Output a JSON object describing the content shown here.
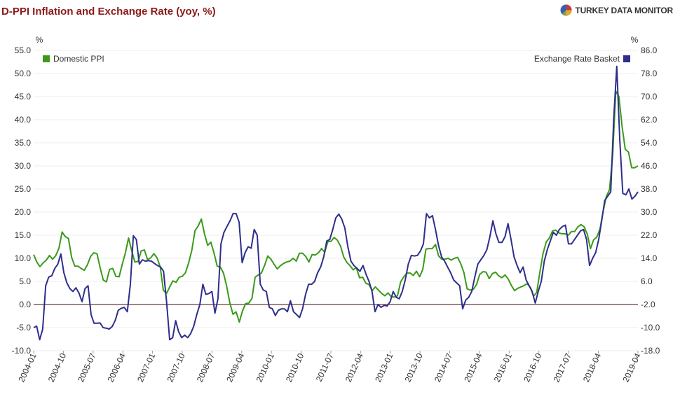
{
  "header": {
    "title": "D-PPI Inflation and Exchange Rate (yoy, %)",
    "brand": "TURKEY DATA MONITOR"
  },
  "colors": {
    "title": "#8b1a1a",
    "domestic_ppi": "#3a9a1a",
    "exchange_rate": "#2e2e8c",
    "zero_line": "#6a3a3a",
    "axis_text": "#333333"
  },
  "chart_data": {
    "type": "line",
    "x_labels": [
      "2004-01",
      "2004-10",
      "2005-07",
      "2006-04",
      "2007-01",
      "2007-10",
      "2008-07",
      "2009-04",
      "2010-01",
      "2010-10",
      "2011-07",
      "2012-04",
      "2013-01",
      "2013-10",
      "2014-07",
      "2015-04",
      "2016-01",
      "2016-10",
      "2017-07",
      "2018-04",
      "2019-04"
    ],
    "x_start": "2004-01",
    "x_end": "2019-04",
    "y_left": {
      "unit": "%",
      "range": [
        -10,
        55
      ],
      "ticks": [
        "-10.0",
        "-5.0",
        "0.0",
        "5.0",
        "10.0",
        "15.0",
        "20.0",
        "25.0",
        "30.0",
        "35.0",
        "40.0",
        "45.0",
        "50.0",
        "55.0"
      ]
    },
    "y_right": {
      "unit": "%",
      "range": [
        -18,
        86
      ],
      "ticks": [
        "-18.0",
        "-10.0",
        "-2.0",
        "6.0",
        "14.0",
        "22.0",
        "30.0",
        "38.0",
        "46.0",
        "54.0",
        "62.0",
        "70.0",
        "78.0",
        "86.0"
      ]
    },
    "series": [
      {
        "name": "Domestic PPI",
        "axis": "left",
        "legend_position": "top-left",
        "values": [
          10.8,
          9.2,
          8.2,
          9.0,
          9.6,
          10.6,
          9.8,
          10.6,
          12.2,
          15.7,
          14.7,
          14.3,
          10.2,
          8.3,
          8.3,
          7.8,
          7.4,
          8.6,
          10.4,
          11.2,
          11.0,
          8.0,
          5.3,
          4.9,
          7.6,
          7.8,
          6.1,
          6.0,
          8.7,
          11.2,
          14.4,
          11.6,
          9.2,
          9.3,
          11.6,
          11.8,
          9.7,
          10.1,
          11.0,
          10.1,
          8.2,
          3.1,
          2.4,
          3.8,
          5.1,
          4.8,
          5.9,
          6.1,
          6.9,
          9.0,
          11.8,
          16.0,
          17.0,
          18.5,
          15.3,
          12.8,
          13.5,
          11.2,
          8.3,
          8.1,
          6.8,
          4.0,
          0.4,
          -2.1,
          -1.6,
          -3.8,
          -1.4,
          0.2,
          0.3,
          1.3,
          5.9,
          6.4,
          6.8,
          8.5,
          10.5,
          9.8,
          8.7,
          7.7,
          8.4,
          8.9,
          9.2,
          9.4,
          10.0,
          9.4,
          11.1,
          11.1,
          10.4,
          9.2,
          10.8,
          10.7,
          11.2,
          12.1,
          11.3,
          13.6,
          13.7,
          14.5,
          13.9,
          12.6,
          10.3,
          9.1,
          8.4,
          7.5,
          8.0,
          5.8,
          5.9,
          4.6,
          4.3,
          3.0,
          3.8,
          3.1,
          2.4,
          1.9,
          2.5,
          1.7,
          1.6,
          1.9,
          4.9,
          6.0,
          6.8,
          6.8,
          6.3,
          7.2,
          6.0,
          7.6,
          12.0,
          12.1,
          12.1,
          13.0,
          10.5,
          9.8,
          9.8,
          10.0,
          9.6,
          10.0,
          10.2,
          8.8,
          6.9,
          3.4,
          3.1,
          3.3,
          4.3,
          6.5,
          7.1,
          7.0,
          5.6,
          6.7,
          7.0,
          6.2,
          5.8,
          6.4,
          5.5,
          4.1,
          3.0,
          3.5,
          3.8,
          4.1,
          4.5,
          3.7,
          1.8,
          2.6,
          7.0,
          11.0,
          13.5,
          14.4,
          15.9,
          16.1,
          15.5,
          15.3,
          15.3,
          15.0,
          15.8,
          15.8,
          16.8,
          17.3,
          16.8,
          15.2,
          12.1,
          14.0,
          14.6,
          16.3,
          20.2,
          23.4,
          24.8,
          32.1,
          46.2,
          45.0,
          38.5,
          33.6,
          33.0,
          29.6,
          29.6,
          30.0
        ]
      },
      {
        "name": "Exchange Rate Basket",
        "axis": "right",
        "legend_position": "top-right",
        "values": [
          -10.0,
          -9.5,
          -14.2,
          -10.5,
          4.5,
          7.5,
          8.0,
          10.5,
          12.0,
          15.5,
          9.0,
          5.5,
          3.5,
          2.5,
          3.8,
          2.0,
          -1.0,
          3.5,
          4.5,
          -5.5,
          -8.5,
          -8.5,
          -8.4,
          -10.0,
          -10.2,
          -10.5,
          -9.6,
          -7.5,
          -4.0,
          -3.3,
          -3.0,
          -4.5,
          4.8,
          21.8,
          20.5,
          12.0,
          13.5,
          13.0,
          13.2,
          13.0,
          12.2,
          11.5,
          11.0,
          9.5,
          -1.0,
          -14.2,
          -13.5,
          -7.6,
          -11.5,
          -13.5,
          -12.6,
          -13.5,
          -12.0,
          -9.5,
          -5.5,
          -2.0,
          5.0,
          1.5,
          1.8,
          2.5,
          -5.0,
          0.0,
          19.0,
          23.0,
          25.0,
          27.0,
          29.5,
          29.5,
          26.5,
          12.5,
          16.0,
          18.0,
          17.5,
          24.0,
          22.0,
          5.0,
          3.0,
          2.5,
          -3.0,
          -3.5,
          -5.8,
          -4.0,
          -3.5,
          -3.5,
          -4.5,
          -0.7,
          -4.5,
          -5.5,
          -6.5,
          -3.5,
          1.5,
          5.0,
          5.0,
          6.0,
          9.0,
          11.0,
          14.5,
          20.0,
          20.5,
          24.0,
          28.0,
          29.3,
          27.5,
          24.5,
          18.0,
          13.0,
          11.5,
          10.5,
          9.5,
          11.5,
          8.5,
          6.0,
          2.5,
          -4.5,
          -2.0,
          -3.0,
          -2.3,
          -2.5,
          -1.0,
          2.5,
          0.5,
          0.0,
          2.5,
          6.5,
          12.0,
          15.0,
          14.8,
          15.0,
          16.5,
          19.0,
          29.5,
          28.0,
          28.8,
          24.0,
          18.5,
          14.5,
          13.0,
          11.0,
          9.0,
          6.5,
          5.5,
          4.5,
          -3.5,
          -0.5,
          0.5,
          2.5,
          7.5,
          12.0,
          13.5,
          15.0,
          17.0,
          21.5,
          27.0,
          22.5,
          19.5,
          19.5,
          21.5,
          26.0,
          20.5,
          14.5,
          11.5,
          9.0,
          11.0,
          6.5,
          4.5,
          2.5,
          -1.5,
          2.5,
          6.0,
          13.0,
          17.0,
          20.0,
          23.0,
          22.0,
          24.0,
          25.0,
          25.5,
          19.0,
          19.0,
          20.5,
          22.0,
          23.5,
          24.0,
          20.5,
          11.5,
          14.0,
          16.0,
          20.5,
          27.0,
          34.0,
          35.5,
          37.0,
          62.5,
          80.5,
          55.0,
          36.5,
          36.0,
          38.0,
          34.5,
          35.5,
          37.0
        ]
      }
    ]
  }
}
